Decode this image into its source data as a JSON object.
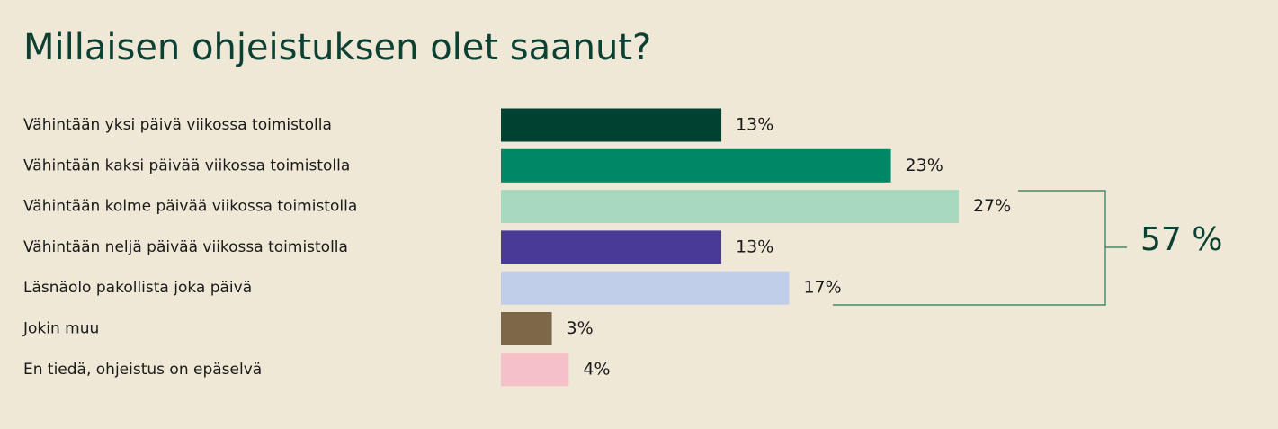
{
  "chart_data": {
    "type": "bar",
    "orientation": "horizontal",
    "title": "Millaisen ohjeistuksen olet saanut?",
    "categories": [
      "Vähintään yksi päivä viikossa toimistolla",
      "Vähintään kaksi päivää viikossa toimistolla",
      "Vähintään kolme päivää viikossa toimistolla",
      "Vähintään neljä päivää viikossa toimistolla",
      "Läsnäolo pakollista joka päivä",
      "Jokin muu",
      "En tiedä, ohjeistus on epäselvä"
    ],
    "values": [
      13,
      23,
      27,
      13,
      17,
      3,
      4
    ],
    "value_labels": [
      "13%",
      "23%",
      "27%",
      "13%",
      "17%",
      "3%",
      "4%"
    ],
    "colors": [
      "#004232",
      "#008866",
      "#a8d8bf",
      "#483a96",
      "#bfcde9",
      "#7c6749",
      "#f6c0c8"
    ],
    "annotation": "57 %"
  }
}
